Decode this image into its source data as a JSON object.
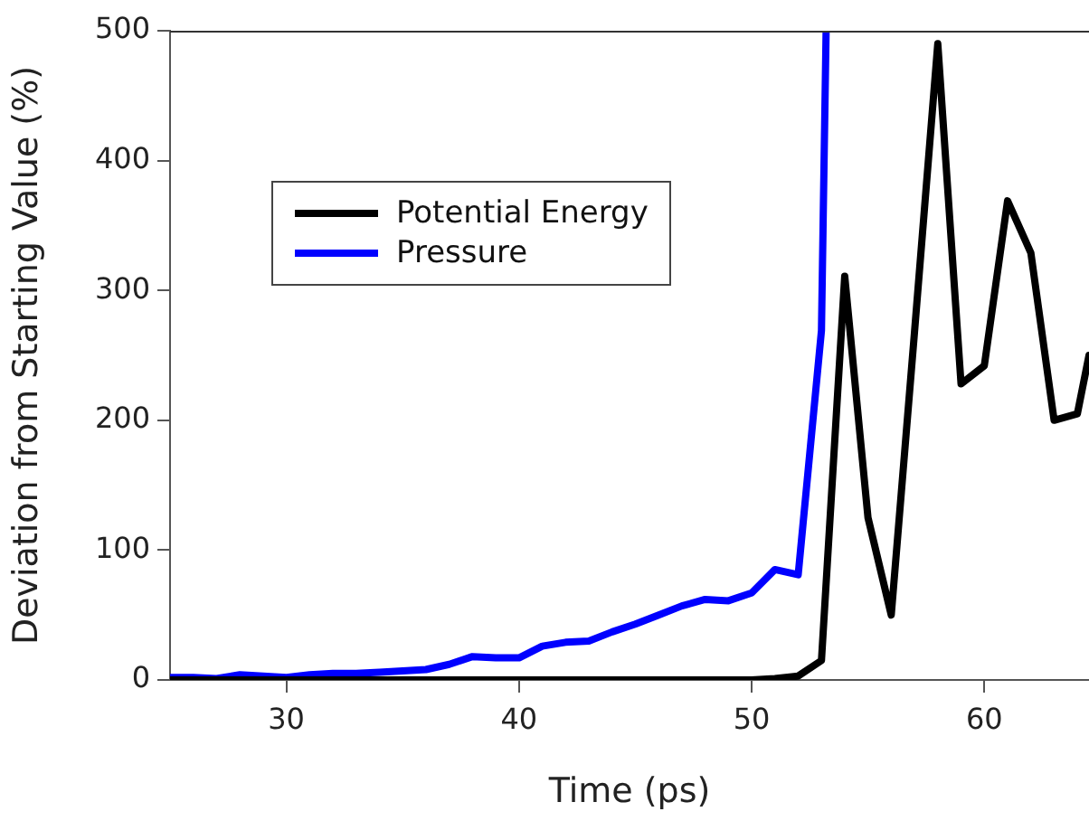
{
  "chart_data": {
    "type": "line",
    "xlabel": "Time (ps)",
    "ylabel": "Deviation from Starting Value (%)",
    "xlim": [
      25,
      64.5
    ],
    "xticks": [
      30,
      40,
      50,
      60
    ],
    "ylim": [
      0,
      500
    ],
    "yticks": [
      0,
      100,
      200,
      300,
      400,
      500
    ],
    "grid": false,
    "legend": "top left",
    "marker": "none",
    "line_style": "solid",
    "series": [
      {
        "name": "Potential Energy",
        "color": "#000000",
        "x": [
          25,
          26,
          27,
          28,
          29,
          30,
          31,
          32,
          33,
          34,
          35,
          36,
          37,
          38,
          39,
          40,
          41,
          42,
          43,
          44,
          45,
          46,
          47,
          48,
          49,
          50,
          51,
          52,
          53,
          54,
          55,
          56,
          57,
          58,
          59,
          60,
          61,
          62,
          63,
          64,
          64.5
        ],
        "values": [
          0,
          0,
          0,
          0,
          0,
          0,
          0,
          0,
          0,
          0,
          0,
          0,
          0,
          0,
          0,
          0,
          0,
          0,
          0,
          0,
          0,
          0,
          0,
          0,
          0,
          0,
          1,
          3,
          15,
          311,
          125,
          50,
          268,
          490,
          228,
          242,
          369,
          329,
          200,
          205,
          250
        ]
      },
      {
        "name": "Pressure",
        "color": "#0000ff",
        "x": [
          25,
          26,
          27,
          28,
          29,
          30,
          31,
          32,
          33,
          34,
          35,
          36,
          37,
          38,
          39,
          40,
          41,
          42,
          43,
          44,
          45,
          46,
          47,
          48,
          49,
          50,
          51,
          52,
          53,
          53.2
        ],
        "values": [
          2,
          2,
          1,
          4,
          3,
          2,
          4,
          5,
          5,
          6,
          7,
          8,
          12,
          18,
          17,
          17,
          26,
          29,
          30,
          37,
          43,
          50,
          57,
          62,
          61,
          67,
          85,
          81,
          269,
          500
        ]
      }
    ]
  }
}
